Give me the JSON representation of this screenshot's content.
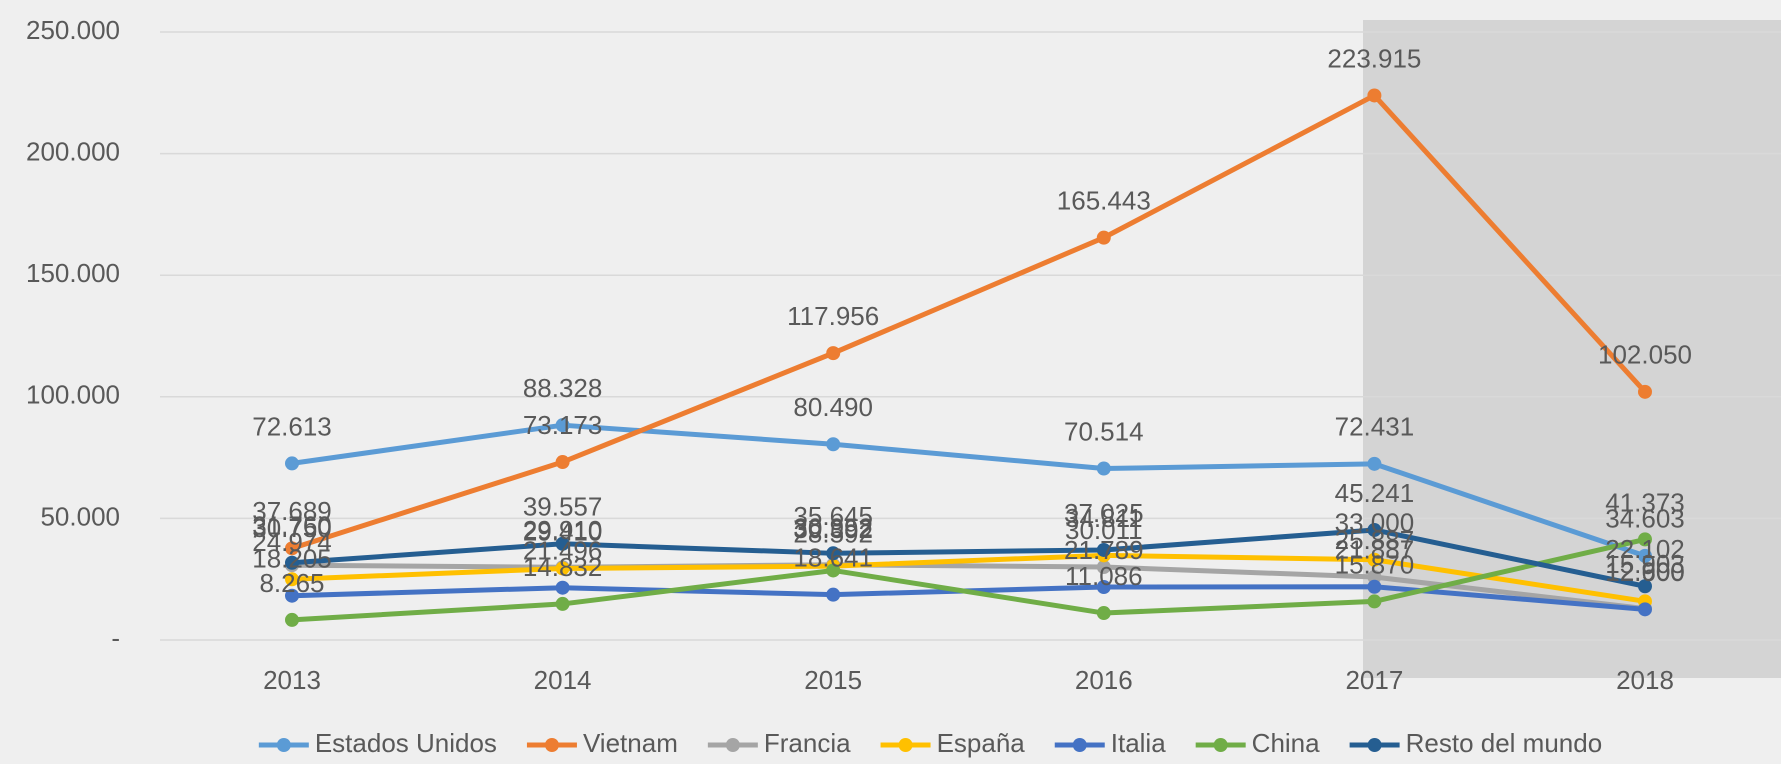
{
  "chart_data": {
    "type": "line",
    "categories": [
      "2013",
      "2014",
      "2015",
      "2016",
      "2017",
      "2018"
    ],
    "series": [
      {
        "name": "Estados Unidos",
        "color": "#5b9bd5",
        "values": [
          72613,
          88328,
          80490,
          70514,
          72431,
          34603
        ],
        "value_labels": [
          "72.613",
          "88.328",
          "80.490",
          "70.514",
          "72.431",
          "34.603"
        ]
      },
      {
        "name": "Vietnam",
        "color": "#ed7d31",
        "values": [
          37689,
          73173,
          117956,
          165443,
          223915,
          102050
        ],
        "value_labels": [
          "37.689",
          "73.173",
          "117.956",
          "165.443",
          "223.915",
          "102.050"
        ]
      },
      {
        "name": "Francia",
        "color": "#a5a5a5",
        "values": [
          30750,
          29910,
          30952,
          30011,
          25887,
          12900
        ],
        "value_labels": [
          "30.750",
          "29.910",
          "30.952",
          "30.011",
          "25.887",
          "12.900"
        ]
      },
      {
        "name": "España",
        "color": "#ffc000",
        "values": [
          24974,
          29410,
          30392,
          34811,
          33000,
          15903
        ],
        "value_labels": [
          "24.974",
          "29.410",
          "30.392",
          "34.811",
          "33.000",
          "15.903"
        ]
      },
      {
        "name": "Italia",
        "color": "#4472c4",
        "values": [
          18205,
          21496,
          18641,
          21789,
          21887,
          12600
        ],
        "value_labels": [
          "18.205",
          "21.496",
          "18.641",
          "21.789",
          "21.887",
          "12.600"
        ]
      },
      {
        "name": "China",
        "color": "#70ad47",
        "values": [
          8265,
          14832,
          28592,
          11086,
          15870,
          41373
        ],
        "value_labels": [
          "8.265",
          "14.832",
          "28.592",
          "11.086",
          "15.870",
          "41.373"
        ]
      },
      {
        "name": "Resto del mundo",
        "color": "#255e91",
        "values": [
          31760,
          39557,
          35645,
          37025,
          45241,
          22102
        ],
        "value_labels": [
          "31.760",
          "39.557",
          "35.645",
          "37.025",
          "45.241",
          "22.102"
        ]
      }
    ],
    "ylim": [
      0,
      250000
    ],
    "yticks": [
      {
        "value": 0,
        "label": "-"
      },
      {
        "value": 50000,
        "label": "50.000"
      },
      {
        "value": 100000,
        "label": "100.000"
      },
      {
        "value": 150000,
        "label": "150.000"
      },
      {
        "value": 200000,
        "label": "200.000"
      },
      {
        "value": 250000,
        "label": "250.000"
      }
    ],
    "grid": true,
    "legend": "bottom"
  }
}
